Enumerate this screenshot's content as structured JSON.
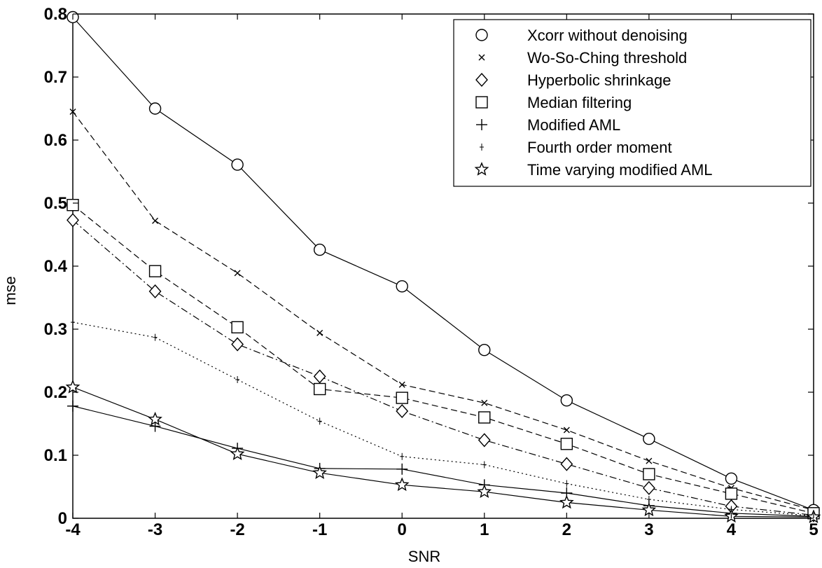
{
  "chart_data": {
    "type": "line",
    "xlabel": "SNR",
    "ylabel": "mse",
    "xlim": [
      -4,
      5
    ],
    "ylim": [
      0,
      0.8
    ],
    "x_ticks": [
      "-4",
      "-3",
      "-2",
      "-1",
      "0",
      "1",
      "2",
      "3",
      "4",
      "5"
    ],
    "y_ticks": [
      "0",
      "0.1",
      "0.2",
      "0.3",
      "0.4",
      "0.5",
      "0.6",
      "0.7",
      "0.8"
    ],
    "grid": false,
    "legend_position": "top-right",
    "x": [
      -4,
      -3,
      -2,
      -1,
      0,
      1,
      2,
      3,
      4,
      5
    ],
    "series": [
      {
        "name": "Xcorr without denoising",
        "marker": "circle",
        "line": "solid",
        "values": [
          0.795,
          0.65,
          0.561,
          0.426,
          0.368,
          0.267,
          0.187,
          0.126,
          0.063,
          0.013
        ]
      },
      {
        "name": "Wo-So-Ching threshold",
        "marker": "x",
        "line": "dashed",
        "values": [
          0.645,
          0.472,
          0.389,
          0.294,
          0.212,
          0.183,
          0.14,
          0.091,
          0.048,
          0.013
        ]
      },
      {
        "name": "Hyperbolic shrinkage",
        "marker": "diamond",
        "line": "dashdot",
        "values": [
          0.473,
          0.36,
          0.276,
          0.225,
          0.17,
          0.124,
          0.086,
          0.048,
          0.019,
          0.005
        ]
      },
      {
        "name": "Median filtering",
        "marker": "square",
        "line": "dashed",
        "values": [
          0.497,
          0.392,
          0.303,
          0.205,
          0.191,
          0.16,
          0.118,
          0.07,
          0.039,
          0.008
        ]
      },
      {
        "name": "Modified AML",
        "marker": "plus",
        "line": "solid",
        "values": [
          0.178,
          0.146,
          0.111,
          0.079,
          0.078,
          0.053,
          0.04,
          0.02,
          0.008,
          0.003
        ]
      },
      {
        "name": "Fourth order moment",
        "marker": "dot-plus",
        "line": "dotted",
        "values": [
          0.311,
          0.287,
          0.22,
          0.154,
          0.098,
          0.085,
          0.055,
          0.03,
          0.014,
          0.004
        ]
      },
      {
        "name": "Time varying modified AML",
        "marker": "star",
        "line": "solid",
        "values": [
          0.208,
          0.157,
          0.102,
          0.072,
          0.053,
          0.042,
          0.025,
          0.013,
          0.003,
          0.002
        ]
      }
    ]
  }
}
